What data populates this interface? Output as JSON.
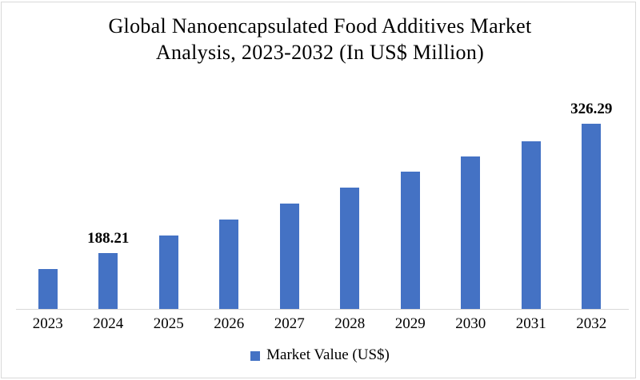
{
  "page": {
    "background": "#ffffff",
    "frame_border_color": "#d9d9d9"
  },
  "chart_data": {
    "type": "bar",
    "title": "Global Nanoencapsulated Food Additives Market Analysis, 2023-2032 (In US$ Million)",
    "title_lines": [
      "Global Nanoencapsulated Food Additives Market",
      "Analysis, 2023-2032 (In US$ Million)"
    ],
    "categories": [
      "2023",
      "2024",
      "2025",
      "2026",
      "2027",
      "2028",
      "2029",
      "2030",
      "2031",
      "2032"
    ],
    "series": [
      {
        "name": "Market Value (US$)",
        "values": [
          171,
          188.21,
          207,
          224,
          241,
          258,
          275,
          291,
          308,
          326.29
        ]
      }
    ],
    "value_labels": [
      "",
      "188.21",
      "",
      "",
      "",
      "",
      "",
      "",
      "",
      "326.29"
    ],
    "labeled_points": {
      "2024": "188.21",
      "2032": "326.29"
    },
    "legend": [
      "Market Value (US$)"
    ],
    "legend_position": "bottom",
    "xlabel": "",
    "ylabel": "",
    "ylim": [
      128.5,
      340
    ],
    "grid": false,
    "bar_color": "#4472C4",
    "axis_line_color": "#d9d9d9",
    "text_color": "#000000"
  }
}
